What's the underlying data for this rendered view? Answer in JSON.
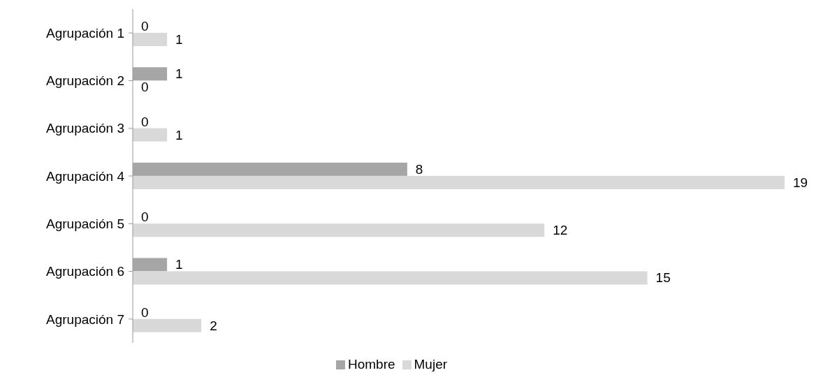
{
  "chart_data": {
    "type": "bar",
    "orientation": "horizontal",
    "categories": [
      "Agrupación 1",
      "Agrupación 2",
      "Agrupación 3",
      "Agrupación 4",
      "Agrupación 5",
      "Agrupación 6",
      "Agrupación 7"
    ],
    "series": [
      {
        "name": "Hombre",
        "color": "#a6a6a6",
        "values": [
          0,
          1,
          0,
          8,
          0,
          1,
          0
        ]
      },
      {
        "name": "Mujer",
        "color": "#d9d9d9",
        "values": [
          1,
          0,
          1,
          19,
          12,
          15,
          2
        ]
      }
    ],
    "data_labels": true,
    "grid": false,
    "legend": "bottom",
    "tick_labels": "y"
  }
}
